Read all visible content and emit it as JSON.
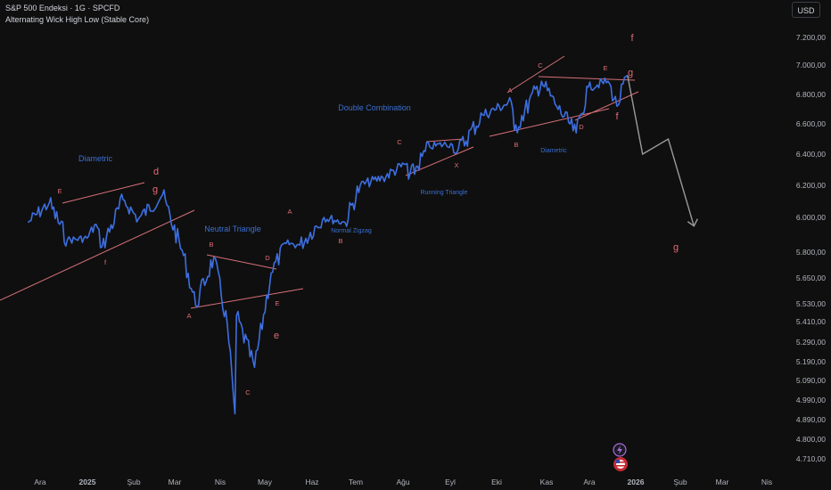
{
  "header": {
    "symbol_line": "S&P 500 Endeksi · 1G · SPCFD",
    "indicator_name": "Alternating Wick High Low (Stable Core)"
  },
  "currency_button": "USD",
  "colors": {
    "background": "#0f0f0f",
    "price_line": "#3d6fe0",
    "annotation_red": "#e06c75",
    "trendline": "#d7707a",
    "pattern_label_blue": "#3a6fd1",
    "projection": "#9b9b9b",
    "axis_text": "#b2b5be"
  },
  "chart_data": {
    "type": "line",
    "title": "S&P 500 Endeksi · 1G · SPCFD",
    "y_axis_side": "right",
    "y_ticks": [
      "7.200,00",
      "7.000,00",
      "6.800,00",
      "6.600,00",
      "6.400,00",
      "6.200,00",
      "6.000,00",
      "5.800,00",
      "5.650,00",
      "5.530,00",
      "5.410,00",
      "5.290,00",
      "5.190,00",
      "5.090,00",
      "4.990,00",
      "4.890,00",
      "4.800,00",
      "4.710,00"
    ],
    "x_ticks": [
      "Ara",
      "2025",
      "Şub",
      "Mar",
      "Nis",
      "May",
      "Haz",
      "Tem",
      "Ağu",
      "Eyl",
      "Eki",
      "Kas",
      "Ara",
      "2026",
      "Şub",
      "Mar",
      "Nis"
    ],
    "x_range": [
      "2024-11-22",
      "2026-04-30"
    ],
    "series": [
      {
        "points": [
          [
            "2024-11-22",
            5970
          ],
          [
            "2024-12-06",
            6090
          ],
          [
            "2024-12-18",
            5870
          ],
          [
            "2024-12-31",
            5880
          ],
          [
            "2025-01-06",
            5960
          ],
          [
            "2025-01-10",
            5830
          ],
          [
            "2025-01-24",
            6110
          ],
          [
            "2025-02-03",
            5990
          ],
          [
            "2025-02-19",
            6140
          ],
          [
            "2025-03-05",
            5780
          ],
          [
            "2025-03-13",
            5520
          ],
          [
            "2025-03-25",
            5770
          ],
          [
            "2025-04-03",
            5390
          ],
          [
            "2025-04-08",
            4920
          ],
          [
            "2025-04-09",
            5450
          ],
          [
            "2025-04-21",
            5160
          ],
          [
            "2025-05-02",
            5680
          ],
          [
            "2025-05-12",
            5850
          ],
          [
            "2025-05-21",
            5840
          ],
          [
            "2025-06-06",
            6000
          ],
          [
            "2025-06-20",
            5970
          ],
          [
            "2025-06-30",
            6200
          ],
          [
            "2025-07-15",
            6250
          ],
          [
            "2025-07-31",
            6340
          ],
          [
            "2025-08-01",
            6240
          ],
          [
            "2025-08-15",
            6450
          ],
          [
            "2025-08-29",
            6470
          ],
          [
            "2025-09-02",
            6410
          ],
          [
            "2025-09-19",
            6660
          ],
          [
            "2025-10-08",
            6750
          ],
          [
            "2025-10-10",
            6560
          ],
          [
            "2025-10-28",
            6890
          ],
          [
            "2025-11-07",
            6720
          ],
          [
            "2025-11-20",
            6540
          ],
          [
            "2025-11-28",
            6850
          ],
          [
            "2025-12-11",
            6890
          ],
          [
            "2025-12-17",
            6720
          ],
          [
            "2025-12-24",
            6930
          ]
        ]
      }
    ],
    "projection": [
      [
        "2025-12-24",
        6930
      ],
      [
        "2026-01-03",
        6400
      ],
      [
        "2026-01-20",
        6500
      ],
      [
        "2026-02-06",
        5950
      ]
    ],
    "pattern_labels": [
      "Diametric",
      "Neutral Triangle",
      "Normal Zigzag",
      "Double Combination",
      "Running Triangle",
      "Diametric"
    ],
    "wave_labels_small": [
      "E",
      "f",
      "A",
      "B",
      "C",
      "D",
      "E",
      "A",
      "B",
      "C",
      "X",
      "A",
      "B",
      "C",
      "D",
      "E"
    ],
    "wave_labels_large": [
      "d",
      "g",
      "e",
      "f",
      "f",
      "g",
      "g"
    ]
  },
  "event_icons": [
    "lightning-icon",
    "us-flag-icon"
  ]
}
